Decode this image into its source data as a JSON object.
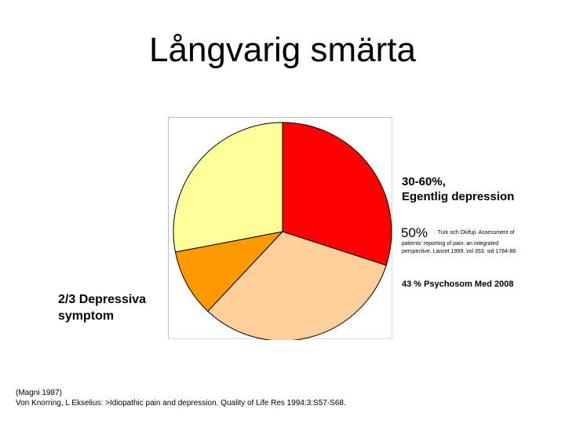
{
  "slide": {
    "title": "Långvarig smärta"
  },
  "annotations": {
    "depression_line1": "30-60%,",
    "depression_line2": "Egentlig depression",
    "fifty_percent": "50%",
    "turk_ref_line1": ". Turk och Okifuji. Assessment of",
    "turk_ref_line2": "patients' reporting of pain: an integrated perspective. Lancet 1999. vol 353. sid 1784-88",
    "psychosom": "43 % Psychosom Med 2008",
    "left_line1": "2/3 Depressiva",
    "left_line2": "symptom"
  },
  "references": {
    "line1": "(Magni 1987)",
    "line2": "Von Knorring, L Ekselius: >Idiopathic pain and depression. Quality of Life Res 1994:3:S57-S68."
  },
  "chart_data": {
    "type": "pie",
    "title": "",
    "start_angle_deg": 0,
    "direction": "clockwise",
    "slices": [
      {
        "value": 30,
        "color": "#ff0000"
      },
      {
        "value": 32,
        "color": "#fecf9a"
      },
      {
        "value": 10,
        "color": "#ff9900"
      },
      {
        "value": 28,
        "color": "#ffff99"
      }
    ],
    "legend": "none",
    "grid": false
  }
}
